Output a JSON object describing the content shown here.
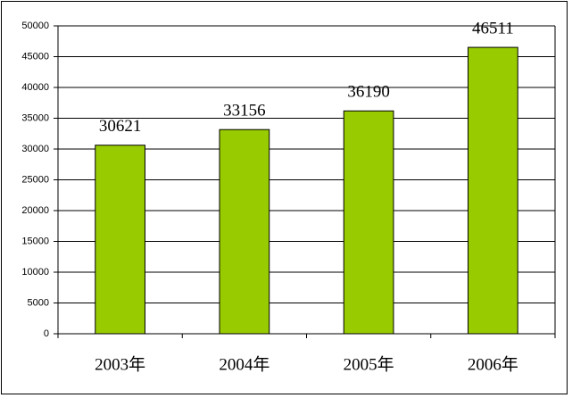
{
  "chart_data": {
    "type": "bar",
    "categories": [
      "2003年",
      "2004年",
      "2005年",
      "2006年"
    ],
    "values": [
      30621,
      33156,
      36190,
      46511
    ],
    "color": "#99cc00",
    "ylim": [
      0,
      50000
    ],
    "yticks": [
      0,
      5000,
      10000,
      15000,
      20000,
      25000,
      30000,
      35000,
      40000,
      45000,
      50000
    ],
    "grid": true
  }
}
